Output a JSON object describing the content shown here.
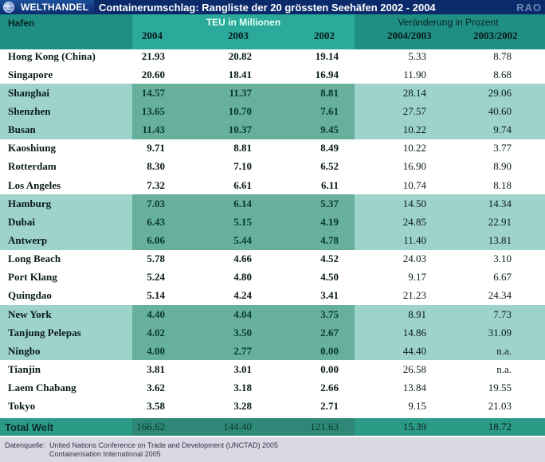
{
  "header": {
    "brand": "WELTHANDEL",
    "title": "Containerumschlag: Rangliste der 20 grössten Seehäfen 2002 - 2004",
    "logo_text": "RAO"
  },
  "table": {
    "col_hafen": "Hafen",
    "group_teu": "TEU in Millionen",
    "group_change": "Veränderung in Prozent",
    "years": [
      "2004",
      "2003",
      "2002"
    ],
    "change_cols": [
      "2004/2003",
      "2003/2002"
    ],
    "rows": [
      {
        "name": "Hong Kong (China)",
        "y2004": "21.93",
        "y2003": "20.82",
        "y2002": "19.14",
        "c1": "5.33",
        "c2": "8.78"
      },
      {
        "name": "Singapore",
        "y2004": "20.60",
        "y2003": "18.41",
        "y2002": "16.94",
        "c1": "11.90",
        "c2": "8.68"
      },
      {
        "name": "Shanghai",
        "y2004": "14.57",
        "y2003": "11.37",
        "y2002": "8.81",
        "c1": "28.14",
        "c2": "29.06"
      },
      {
        "name": "Shenzhen",
        "y2004": "13.65",
        "y2003": "10.70",
        "y2002": "7.61",
        "c1": "27.57",
        "c2": "40.60"
      },
      {
        "name": "Busan",
        "y2004": "11.43",
        "y2003": "10.37",
        "y2002": "9.45",
        "c1": "10.22",
        "c2": "9.74"
      },
      {
        "name": "Kaoshiung",
        "y2004": "9.71",
        "y2003": "8.81",
        "y2002": "8.49",
        "c1": "10.22",
        "c2": "3.77"
      },
      {
        "name": "Rotterdam",
        "y2004": "8.30",
        "y2003": "7.10",
        "y2002": "6.52",
        "c1": "16.90",
        "c2": "8.90"
      },
      {
        "name": "Los Angeles",
        "y2004": "7.32",
        "y2003": "6.61",
        "y2002": "6.11",
        "c1": "10.74",
        "c2": "8.18"
      },
      {
        "name": "Hamburg",
        "y2004": "7.03",
        "y2003": "6.14",
        "y2002": "5.37",
        "c1": "14.50",
        "c2": "14.34"
      },
      {
        "name": "Dubai",
        "y2004": "6.43",
        "y2003": "5.15",
        "y2002": "4.19",
        "c1": "24.85",
        "c2": "22.91"
      },
      {
        "name": "Antwerp",
        "y2004": "6.06",
        "y2003": "5.44",
        "y2002": "4.78",
        "c1": "11.40",
        "c2": "13.81"
      },
      {
        "name": "Long Beach",
        "y2004": "5.78",
        "y2003": "4.66",
        "y2002": "4.52",
        "c1": "24.03",
        "c2": "3.10"
      },
      {
        "name": "Port Klang",
        "y2004": "5.24",
        "y2003": "4.80",
        "y2002": "4.50",
        "c1": "9.17",
        "c2": "6.67"
      },
      {
        "name": "Quingdao",
        "y2004": "5.14",
        "y2003": "4.24",
        "y2002": "3.41",
        "c1": "21.23",
        "c2": "24.34"
      },
      {
        "name": "New York",
        "y2004": "4.40",
        "y2003": "4.04",
        "y2002": "3.75",
        "c1": "8.91",
        "c2": "7.73"
      },
      {
        "name": "Tanjung Pelepas",
        "y2004": "4.02",
        "y2003": "3.50",
        "y2002": "2.67",
        "c1": "14.86",
        "c2": "31.09"
      },
      {
        "name": "Ningbo",
        "y2004": "4.00",
        "y2003": "2.77",
        "y2002": "0.00",
        "c1": "44.40",
        "c2": "n.a."
      },
      {
        "name": "Tianjin",
        "y2004": "3.81",
        "y2003": "3.01",
        "y2002": "0.00",
        "c1": "26.58",
        "c2": "n.a."
      },
      {
        "name": "Laem Chabang",
        "y2004": "3.62",
        "y2003": "3.18",
        "y2002": "2.66",
        "c1": "13.84",
        "c2": "19.55"
      },
      {
        "name": "Tokyo",
        "y2004": "3.58",
        "y2003": "3.28",
        "y2002": "2.71",
        "c1": "9.15",
        "c2": "21.03"
      }
    ],
    "total": {
      "name": "Total Welt",
      "y2004": "166.62",
      "y2003": "144.40",
      "y2002": "121.63",
      "c1": "15.39",
      "c2": "18.72"
    }
  },
  "footer": {
    "label": "Datenquelle:",
    "line1": "United Nations Conference on Trade and Development (UNCTAD) 2005",
    "line2": "Containerisation International 2005"
  }
}
